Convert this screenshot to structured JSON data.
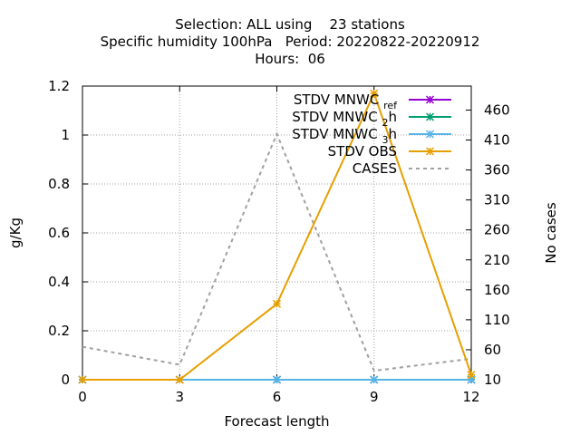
{
  "chart_data": {
    "type": "line",
    "title_lines": [
      "Selection: ALL using    23 stations",
      "Specific humidity 100hPa   Period: 20220822-20220912",
      "Hours:  06"
    ],
    "xlabel": "Forecast length",
    "ylabel": "g/Kg",
    "y2label": "No cases",
    "x": [
      0,
      3,
      6,
      9,
      12
    ],
    "xticks": [
      "0",
      "3",
      "6",
      "9",
      "12"
    ],
    "xlim": [
      0,
      12
    ],
    "ylim": [
      0,
      1.2
    ],
    "yticks": [
      "0",
      "0.2",
      "0.4",
      "0.6",
      "0.8",
      "1",
      "1.2"
    ],
    "y2lim": [
      10,
      500
    ],
    "y2ticks": [
      "10",
      "60",
      "110",
      "160",
      "210",
      "260",
      "310",
      "360",
      "410",
      "460"
    ],
    "grid": true,
    "legend_position": "top-right",
    "series": [
      {
        "name": "STDV MNWC_ref",
        "sub": "ref",
        "prefix": "STDV MNWC",
        "color": "#9400d3",
        "axis": "y",
        "marker": "star",
        "values": [
          0,
          0,
          0,
          0,
          0
        ]
      },
      {
        "name": "STDV MNWC_2h",
        "sub": "2",
        "prefix": "STDV MNWC",
        "suffix": "h",
        "color": "#009e73",
        "axis": "y",
        "marker": "star",
        "values": [
          0,
          0,
          0,
          0,
          0
        ]
      },
      {
        "name": "STDV MNWC_3h",
        "sub": "3",
        "prefix": "STDV MNWC",
        "suffix": "h",
        "color": "#56b4e9",
        "axis": "y",
        "marker": "star",
        "values": [
          0,
          0,
          0,
          0,
          0
        ]
      },
      {
        "name": "STDV OBS",
        "color": "#e69f00",
        "axis": "y",
        "marker": "star",
        "values": [
          0,
          0,
          0.31,
          1.17,
          0.02
        ]
      },
      {
        "name": "CASES",
        "color": "#a0a0a0",
        "axis": "y2",
        "dashed": true,
        "values": [
          65,
          35,
          420,
          25,
          45
        ]
      }
    ]
  }
}
